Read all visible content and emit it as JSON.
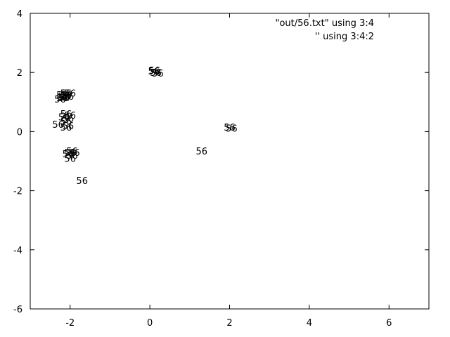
{
  "chart_data": {
    "type": "scatter",
    "xlim": [
      -3,
      7
    ],
    "ylim": [
      -6,
      4
    ],
    "x_ticks": [
      -2,
      0,
      2,
      4,
      6
    ],
    "y_ticks": [
      -6,
      -4,
      -2,
      0,
      2,
      4
    ],
    "grid": false,
    "legend_position": "top-right",
    "series": [
      {
        "name": "\"out/56.txt\" using 3:4",
        "style": "labels",
        "label_text": "56",
        "points": [
          {
            "x": -2.2,
            "y": 1.15
          },
          {
            "x": -2.15,
            "y": 1.2
          },
          {
            "x": -2.1,
            "y": 1.25
          },
          {
            "x": -2.05,
            "y": 1.2
          },
          {
            "x": -2.2,
            "y": 1.25
          },
          {
            "x": -2.1,
            "y": 1.3
          },
          {
            "x": -2.0,
            "y": 1.3
          },
          {
            "x": -2.25,
            "y": 1.1
          },
          {
            "x": -2.15,
            "y": 1.15
          },
          {
            "x": -2.1,
            "y": 0.6
          },
          {
            "x": -2.05,
            "y": 0.45
          },
          {
            "x": -2.1,
            "y": 0.35
          },
          {
            "x": -2.05,
            "y": 0.2
          },
          {
            "x": -2.15,
            "y": 0.5
          },
          {
            "x": -2.0,
            "y": 0.55
          },
          {
            "x": -2.1,
            "y": 0.15
          },
          {
            "x": -2.0,
            "y": -0.7
          },
          {
            "x": -1.95,
            "y": -0.65
          },
          {
            "x": -2.05,
            "y": -0.75
          },
          {
            "x": -1.9,
            "y": -0.7
          },
          {
            "x": -2.0,
            "y": -0.9
          },
          {
            "x": -1.95,
            "y": -0.8
          },
          {
            "x": 0.1,
            "y": 2.05
          },
          {
            "x": 0.15,
            "y": 2.0
          },
          {
            "x": 0.2,
            "y": 1.98
          },
          {
            "x": 0.12,
            "y": 2.08
          },
          {
            "x": 2.0,
            "y": 0.15
          },
          {
            "x": 2.05,
            "y": 0.12
          }
        ]
      },
      {
        "name": "'' using 3:4:2",
        "style": "labels",
        "label_text": "56",
        "points": [
          {
            "x": -2.3,
            "y": 0.25
          },
          {
            "x": 1.3,
            "y": -0.65
          },
          {
            "x": -1.7,
            "y": -1.65
          }
        ]
      }
    ]
  }
}
